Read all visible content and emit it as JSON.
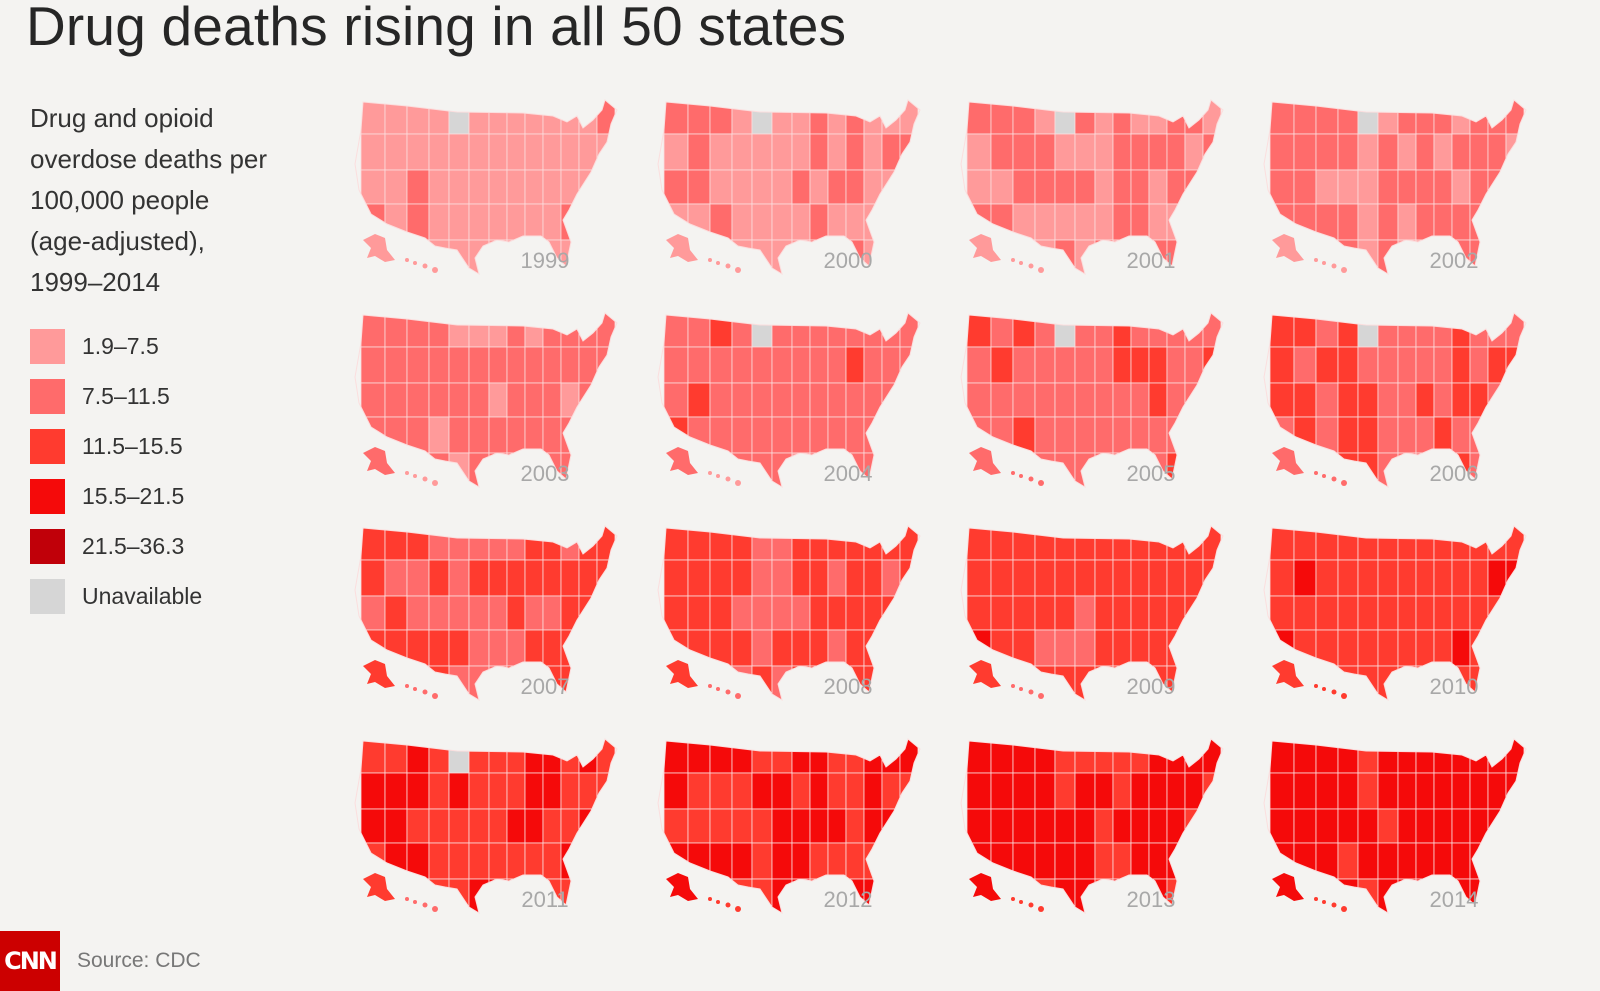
{
  "title": "Drug deaths rising in all 50 states",
  "legend": {
    "heading_lines": [
      "Drug and opioid",
      "overdose deaths per",
      "100,000 people",
      "(age-adjusted),",
      "1999–2014"
    ],
    "items": [
      {
        "label": "1.9–7.5",
        "color": "#ff9a9a"
      },
      {
        "label": "7.5–11.5",
        "color": "#ff6b6b"
      },
      {
        "label": "11.5–15.5",
        "color": "#ff3b2f"
      },
      {
        "label": "15.5–21.5",
        "color": "#f50a0a"
      },
      {
        "label": "21.5–36.3",
        "color": "#c00009"
      },
      {
        "label": "Unavailable",
        "color": "#d6d6d6"
      }
    ]
  },
  "maps": [
    {
      "year": "1999"
    },
    {
      "year": "2000"
    },
    {
      "year": "2001"
    },
    {
      "year": "2002"
    },
    {
      "year": "2003"
    },
    {
      "year": "2004"
    },
    {
      "year": "2005"
    },
    {
      "year": "2006"
    },
    {
      "year": "2007"
    },
    {
      "year": "2008"
    },
    {
      "year": "2009"
    },
    {
      "year": "2010"
    },
    {
      "year": "2011"
    },
    {
      "year": "2012"
    },
    {
      "year": "2013"
    },
    {
      "year": "2014"
    }
  ],
  "footer": {
    "logo_text": "CNN",
    "source": "Source: CDC"
  }
}
